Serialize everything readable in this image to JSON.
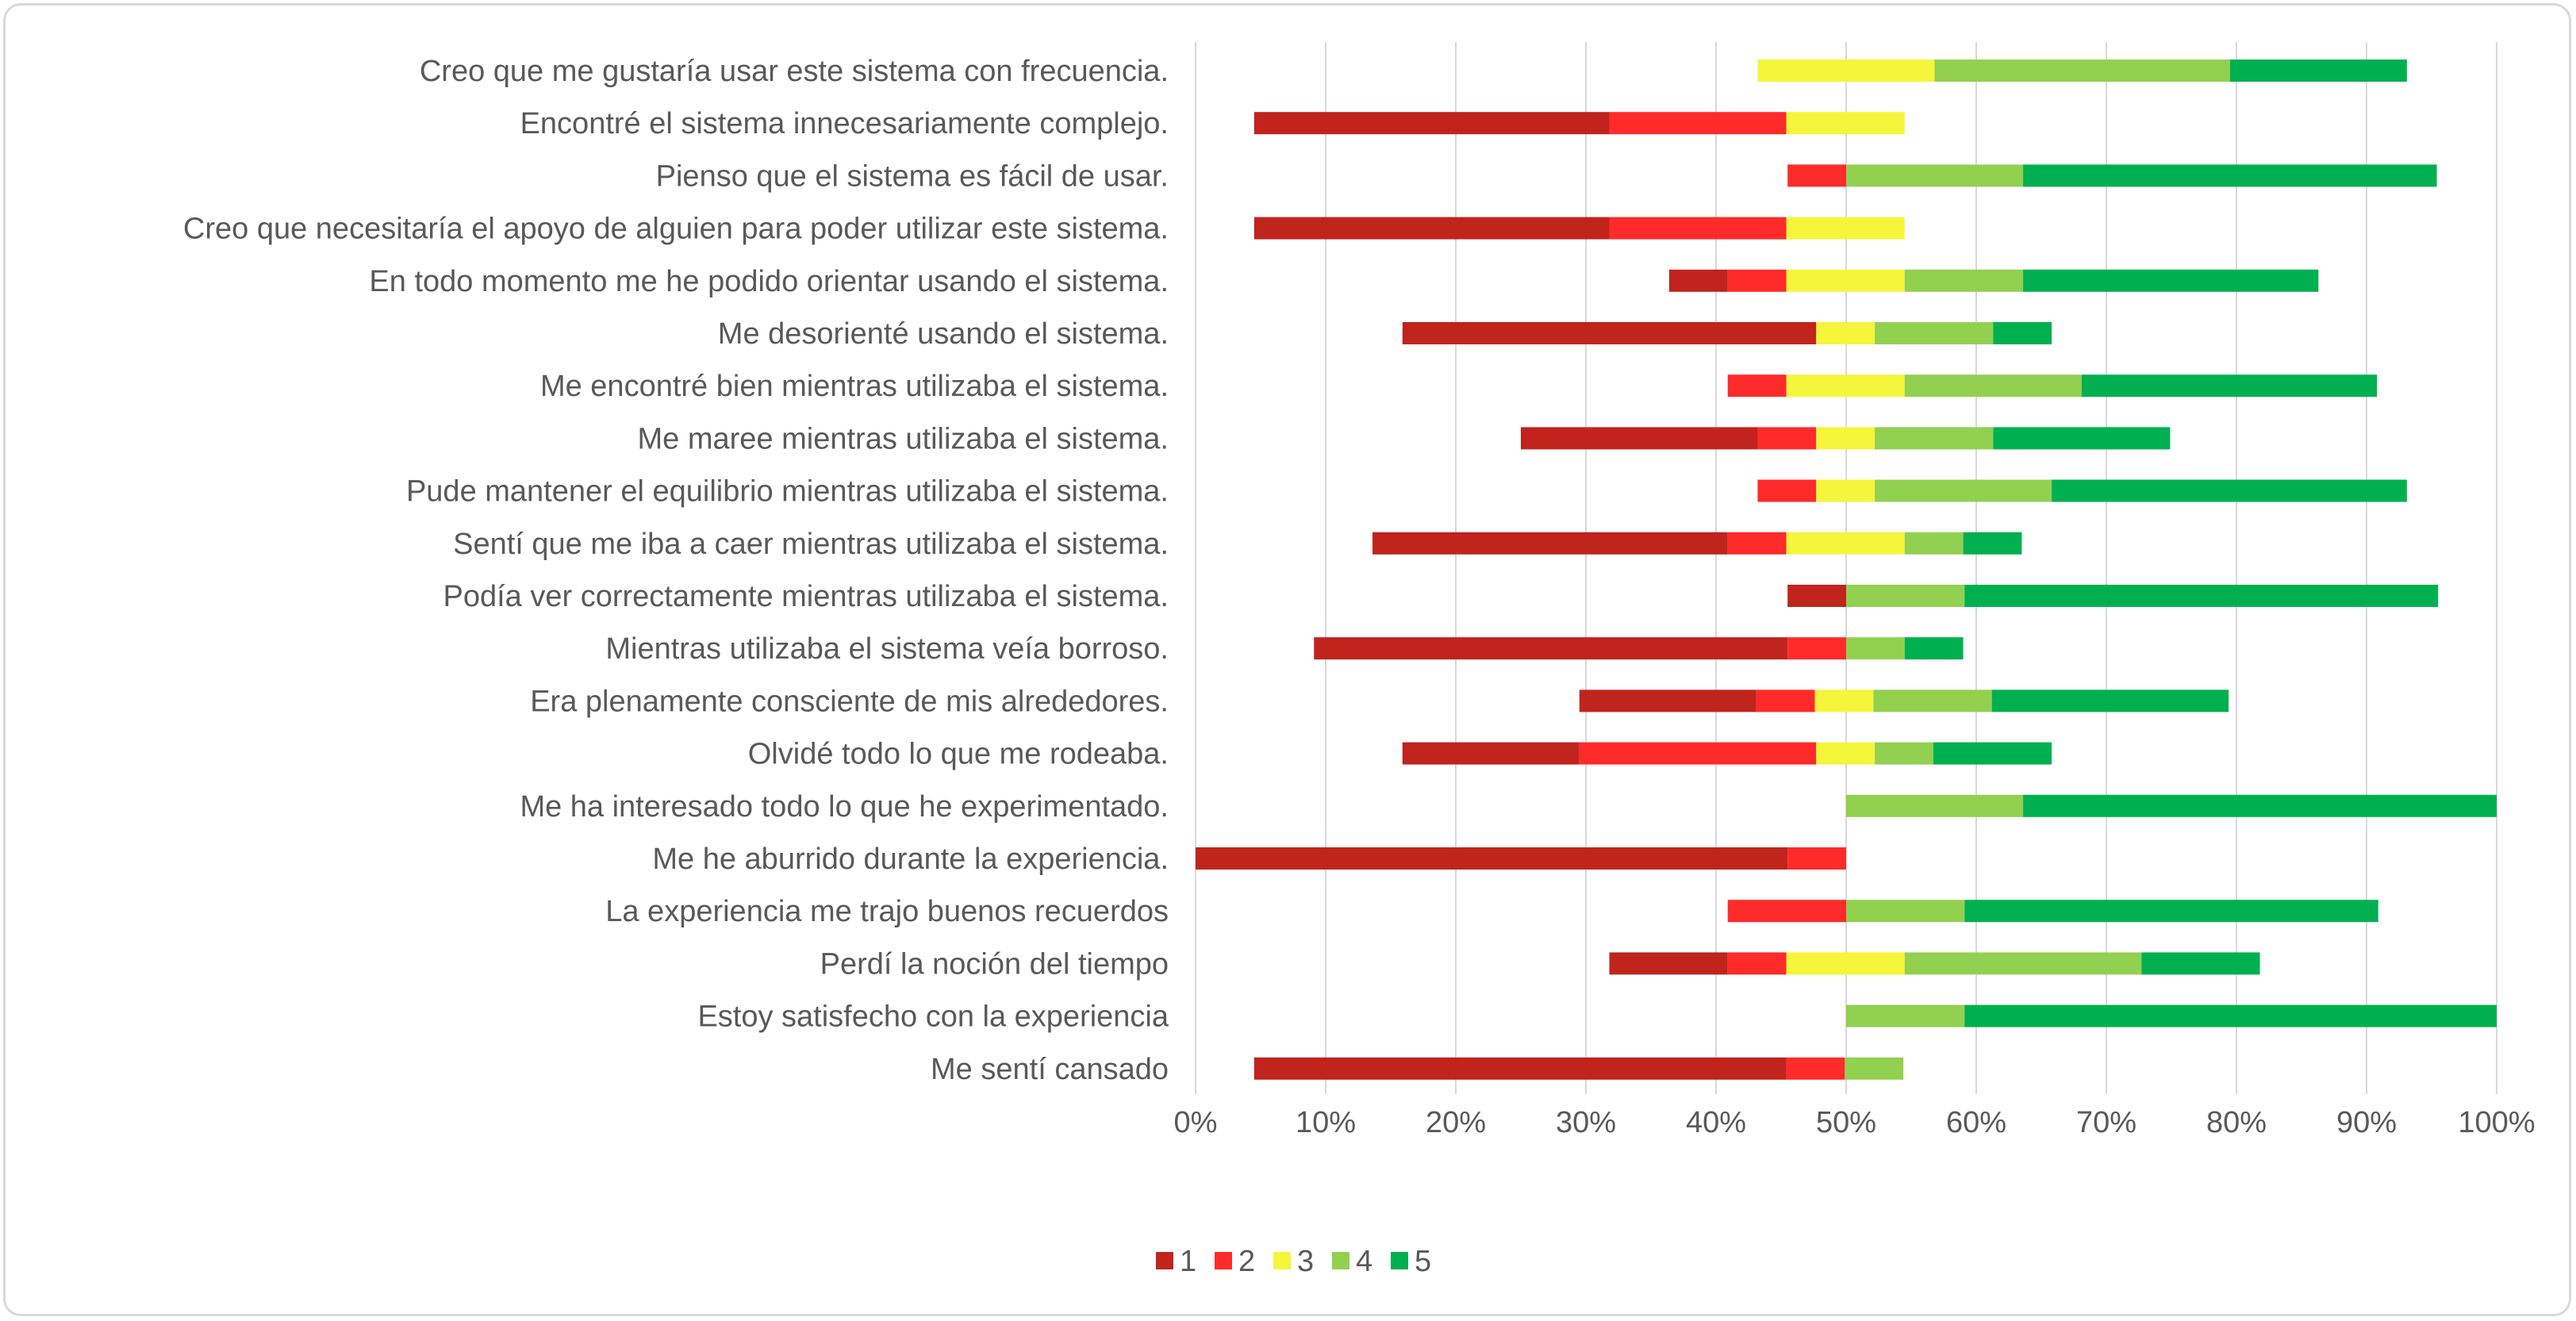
{
  "chart_data": {
    "type": "bar",
    "orientation": "horizontal",
    "stacked": true,
    "diverging": true,
    "xlim": [
      0,
      100
    ],
    "x_unit": "%",
    "grid": true,
    "legend_position": "bottom",
    "x_ticks": [
      "0%",
      "10%",
      "20%",
      "30%",
      "40%",
      "50%",
      "60%",
      "70%",
      "80%",
      "90%",
      "100%"
    ],
    "categories": [
      "Creo que me gustaría usar este sistema con frecuencia.",
      "Encontré el sistema innecesariamente complejo.",
      "Pienso que el sistema es fácil de usar.",
      "Creo que necesitaría el apoyo de alguien para poder utilizar este sistema.",
      "En todo momento me he podido orientar usando el sistema.",
      "Me desorienté usando el sistema.",
      "Me encontré bien mientras utilizaba el sistema.",
      "Me maree mientras utilizaba el sistema.",
      "Pude mantener el equilibrio mientras utilizaba el sistema.",
      "Sentí que me iba a caer mientras utilizaba el sistema.",
      "Podía ver correctamente mientras utilizaba el sistema.",
      "Mientras utilizaba el sistema veía borroso.",
      "Era plenamente consciente de mis alrededores.",
      "Olvidé todo lo que me rodeaba.",
      "Me ha interesado todo lo que he experimentado.",
      "Me he aburrido durante la experiencia.",
      "La experiencia me trajo buenos recuerdos",
      "Perdí la noción del tiempo",
      "Estoy satisfecho con la experiencia",
      "Me sentí cansado"
    ],
    "offsets": [
      43.2,
      4.5,
      45.5,
      4.5,
      36.4,
      15.9,
      40.9,
      25.0,
      43.2,
      13.6,
      45.5,
      9.1,
      29.5,
      15.9,
      50.0,
      0.0,
      40.9,
      31.8,
      50.0,
      4.5
    ],
    "series": [
      {
        "name": "1",
        "color": "#c0241c",
        "values": [
          0,
          27.3,
          0,
          27.3,
          4.5,
          31.8,
          0,
          18.2,
          0,
          27.3,
          4.5,
          36.4,
          13.6,
          13.6,
          0,
          45.5,
          0,
          9.1,
          0,
          40.9
        ]
      },
      {
        "name": "2",
        "color": "#ff2a2a",
        "values": [
          0,
          13.6,
          4.5,
          13.6,
          4.5,
          0,
          4.5,
          4.5,
          4.5,
          4.5,
          0,
          4.5,
          4.5,
          18.2,
          0,
          4.5,
          9.1,
          4.5,
          0,
          4.5
        ]
      },
      {
        "name": "3",
        "color": "#f5f53c",
        "values": [
          13.6,
          9.1,
          0,
          9.1,
          9.1,
          4.5,
          9.1,
          4.5,
          4.5,
          9.1,
          0,
          0,
          4.5,
          4.5,
          0,
          0,
          0,
          9.1,
          0,
          0
        ]
      },
      {
        "name": "4",
        "color": "#92d050",
        "values": [
          22.7,
          0,
          13.6,
          0,
          9.1,
          9.1,
          13.6,
          9.1,
          13.6,
          4.5,
          9.1,
          4.5,
          9.1,
          4.5,
          13.6,
          0,
          9.1,
          18.2,
          9.1,
          4.5
        ]
      },
      {
        "name": "5",
        "color": "#00b050",
        "values": [
          13.6,
          0,
          31.8,
          0,
          22.7,
          4.5,
          22.7,
          13.6,
          27.3,
          4.5,
          36.4,
          4.5,
          18.2,
          9.1,
          36.4,
          0,
          31.8,
          9.1,
          40.9,
          0
        ]
      }
    ]
  }
}
